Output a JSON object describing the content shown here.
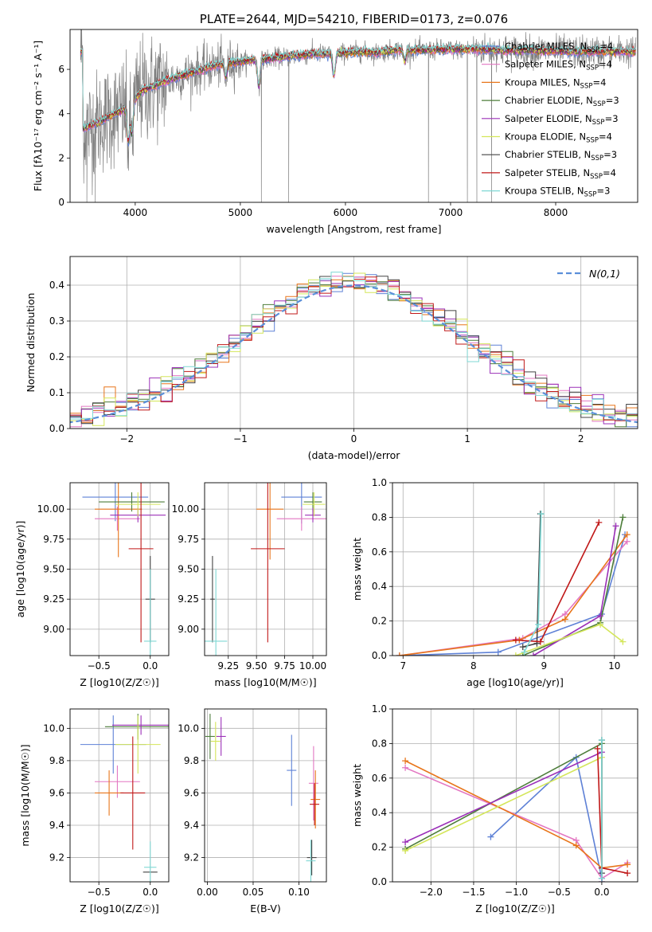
{
  "chart_data": [
    {
      "id": "spectrum",
      "type": "line",
      "title": "PLATE=2644, MJD=54210, FIBERID=0173, z=0.076",
      "xlabel": "wavelength [Angstrom, rest frame]",
      "ylabel": "Flux [fλ10⁻¹⁷ erg cm⁻² s⁻¹ A⁻¹]",
      "xlim": [
        3380,
        8780
      ],
      "ylim": [
        0,
        7.8
      ],
      "xticks": [
        4000,
        5000,
        6000,
        7000,
        8000
      ],
      "yticks": [
        0,
        2,
        4,
        6
      ],
      "continuum": {
        "x": [
          3500,
          3650,
          3800,
          3950,
          4050,
          4250,
          4500,
          4700,
          4900,
          5100,
          5300,
          5500,
          5700,
          5900,
          6100,
          6300,
          6500,
          6700,
          6900,
          7100,
          7300,
          7500,
          7700,
          7900,
          8100,
          8300,
          8500,
          8750
        ],
        "y": [
          3.3,
          3.6,
          4.0,
          4.3,
          5.0,
          5.4,
          5.8,
          6.1,
          6.3,
          6.4,
          6.5,
          6.6,
          6.7,
          6.7,
          6.8,
          6.75,
          6.9,
          6.85,
          6.9,
          6.9,
          6.9,
          6.85,
          6.85,
          6.85,
          6.8,
          6.8,
          6.8,
          6.8
        ]
      },
      "series": [
        {
          "name": "Chabrier MILES, N_SSP=4",
          "color": "#5e81d6"
        },
        {
          "name": "Salpeter MILES, N_SSP=4",
          "color": "#e377c2"
        },
        {
          "name": "Kroupa MILES, N_SSP=4",
          "color": "#e8751a"
        },
        {
          "name": "Chabrier ELODIE, N_SSP=3",
          "color": "#4d7d3a"
        },
        {
          "name": "Salpeter ELODIE, N_SSP=3",
          "color": "#9b30b8"
        },
        {
          "name": "Kroupa ELODIE, N_SSP=4",
          "color": "#d4e65a"
        },
        {
          "name": "Chabrier STELIB, N_SSP=3",
          "color": "#444444"
        },
        {
          "name": "Salpeter STELIB, N_SSP=4",
          "color": "#c01818"
        },
        {
          "name": "Kroupa STELIB, N_SSP=3",
          "color": "#7fd8d4"
        }
      ],
      "data_color": "#808080"
    },
    {
      "id": "residuals",
      "type": "line",
      "xlabel": "(data-model)/error",
      "ylabel": "Normed distribution",
      "xlim": [
        -2.5,
        2.5
      ],
      "ylim": [
        0,
        0.48
      ],
      "xticks": [
        -2,
        -1,
        0,
        1,
        2
      ],
      "yticks": [
        0.0,
        0.1,
        0.2,
        0.3,
        0.4
      ],
      "legend": "N(0,1)",
      "legend_color": "#5b8fd9"
    },
    {
      "id": "age-vs-z",
      "type": "scatter",
      "xlabel": "Z [log10(Z/Z☉)]",
      "ylabel": "age  [log10(age/yr)]",
      "xlim": [
        -0.78,
        0.18
      ],
      "ylim": [
        8.78,
        10.22
      ],
      "xticks": [
        -0.5,
        0.0
      ],
      "yticks": [
        9.0,
        9.25,
        9.5,
        9.75,
        10.0
      ],
      "points": [
        {
          "color": "#5e81d6",
          "x": -0.34,
          "y": 10.1,
          "xerr": 0.32,
          "yerr": 0.2
        },
        {
          "color": "#e377c2",
          "x": -0.32,
          "y": 9.92,
          "xerr": 0.22,
          "yerr": 0.1
        },
        {
          "color": "#e8751a",
          "x": -0.31,
          "y": 10.0,
          "xerr": 0.23,
          "yerr": 0.4
        },
        {
          "color": "#4d7d3a",
          "x": -0.18,
          "y": 10.06,
          "xerr": 0.32,
          "yerr": 0.08
        },
        {
          "color": "#9b30b8",
          "x": -0.12,
          "y": 9.95,
          "xerr": 0.27,
          "yerr": 0.06
        },
        {
          "color": "#d4e65a",
          "x": -0.12,
          "y": 10.04,
          "xerr": 0.22,
          "yerr": 0.1
        },
        {
          "color": "#c01818",
          "x": -0.09,
          "y": 9.67,
          "xerr": 0.12,
          "yerr": 0.78
        },
        {
          "color": "#444444",
          "x": 0.0,
          "y": 9.25,
          "xerr": 0.0,
          "yerr": 0.36
        },
        {
          "color": "#7fd8d4",
          "x": 0.0,
          "y": 8.9,
          "xerr": 0.06,
          "yerr": 0.6
        }
      ]
    },
    {
      "id": "age-vs-mass",
      "type": "scatter",
      "xlabel": "mass [log10(M/M☉)]",
      "xlim": [
        9.04,
        10.12
      ],
      "ylim": [
        8.78,
        10.22
      ],
      "xticks": [
        9.25,
        9.5,
        9.75,
        10.0
      ],
      "yticks": [
        9.0,
        9.25,
        9.5,
        9.75,
        10.0
      ],
      "points": [
        {
          "color": "#5e81d6",
          "x": 9.9,
          "y": 10.1,
          "xerr": 0.18,
          "yerr": 0.22
        },
        {
          "color": "#e377c2",
          "x": 9.9,
          "y": 9.92,
          "xerr": 0.22,
          "yerr": 0.1
        },
        {
          "color": "#e8751a",
          "x": 9.62,
          "y": 10.0,
          "xerr": 0.12,
          "yerr": 0.42
        },
        {
          "color": "#4d7d3a",
          "x": 10.0,
          "y": 10.06,
          "xerr": 0.08,
          "yerr": 0.08
        },
        {
          "color": "#9b30b8",
          "x": 10.0,
          "y": 9.95,
          "xerr": 0.07,
          "yerr": 0.06
        },
        {
          "color": "#d4e65a",
          "x": 10.01,
          "y": 10.04,
          "xerr": 0.1,
          "yerr": 0.1
        },
        {
          "color": "#c01818",
          "x": 9.6,
          "y": 9.67,
          "xerr": 0.15,
          "yerr": 0.78
        },
        {
          "color": "#444444",
          "x": 9.11,
          "y": 9.25,
          "xerr": 0.02,
          "yerr": 0.36
        },
        {
          "color": "#7fd8d4",
          "x": 9.14,
          "y": 8.9,
          "xerr": 0.1,
          "yerr": 0.6
        }
      ]
    },
    {
      "id": "weight-vs-age",
      "type": "line",
      "xlabel": "age  [log10(age/yr)]",
      "ylabel": "mass weight",
      "xlim": [
        6.85,
        10.33
      ],
      "ylim": [
        0,
        1.0
      ],
      "xticks": [
        7,
        8,
        9,
        10
      ],
      "yticks": [
        0.0,
        0.2,
        0.4,
        0.6,
        0.8,
        1.0
      ],
      "series": [
        {
          "color": "#5e81d6",
          "x": [
            6.95,
            8.35,
            9.82,
            10.15
          ],
          "y": [
            0.0,
            0.02,
            0.24,
            0.7
          ]
        },
        {
          "color": "#e377c2",
          "x": [
            6.95,
            8.7,
            9.3,
            10.18
          ],
          "y": [
            0.0,
            0.1,
            0.24,
            0.66
          ]
        },
        {
          "color": "#e8751a",
          "x": [
            6.95,
            8.65,
            9.3,
            10.18
          ],
          "y": [
            0.0,
            0.09,
            0.21,
            0.7
          ]
        },
        {
          "color": "#4d7d3a",
          "x": [
            8.7,
            9.8,
            10.12
          ],
          "y": [
            0.0,
            0.19,
            0.8
          ]
        },
        {
          "color": "#9b30b8",
          "x": [
            8.85,
            9.8,
            10.02
          ],
          "y": [
            0.0,
            0.23,
            0.75
          ]
        },
        {
          "color": "#d4e65a",
          "x": [
            8.6,
            9.8,
            10.12
          ],
          "y": [
            0.0,
            0.18,
            0.08
          ]
        },
        {
          "color": "#444444",
          "x": [
            8.7,
            8.9,
            8.95
          ],
          "y": [
            0.05,
            0.07,
            0.82
          ]
        },
        {
          "color": "#c01818",
          "x": [
            8.6,
            8.95,
            9.78
          ],
          "y": [
            0.09,
            0.08,
            0.77
          ]
        },
        {
          "color": "#7fd8d4",
          "x": [
            8.72,
            8.92,
            8.96
          ],
          "y": [
            0.02,
            0.18,
            0.82
          ]
        }
      ]
    },
    {
      "id": "mass-vs-z",
      "type": "scatter",
      "xlabel": "Z [log10(Z/Z☉)]",
      "ylabel": "mass [log10(M/M☉)]",
      "xlim": [
        -0.78,
        0.18
      ],
      "ylim": [
        9.05,
        10.12
      ],
      "xticks": [
        -0.5,
        0.0
      ],
      "yticks": [
        9.2,
        9.4,
        9.6,
        9.8,
        10.0
      ],
      "points": [
        {
          "color": "#5e81d6",
          "x": -0.36,
          "y": 9.9,
          "xerr": 0.32,
          "yerr": 0.18
        },
        {
          "color": "#e377c2",
          "x": -0.32,
          "y": 9.67,
          "xerr": 0.22,
          "yerr": 0.1
        },
        {
          "color": "#e8751a",
          "x": -0.4,
          "y": 9.6,
          "xerr": 0.14,
          "yerr": 0.14
        },
        {
          "color": "#4d7d3a",
          "x": -0.12,
          "y": 10.01,
          "xerr": 0.32,
          "yerr": 0.08
        },
        {
          "color": "#9b30b8",
          "x": -0.09,
          "y": 10.02,
          "xerr": 0.28,
          "yerr": 0.06
        },
        {
          "color": "#d4e65a",
          "x": -0.12,
          "y": 9.9,
          "xerr": 0.22,
          "yerr": 0.18
        },
        {
          "color": "#c01818",
          "x": -0.17,
          "y": 9.6,
          "xerr": 0.12,
          "yerr": 0.35
        },
        {
          "color": "#444444",
          "x": 0.0,
          "y": 9.11,
          "xerr": 0.07,
          "yerr": 0.0
        },
        {
          "color": "#7fd8d4",
          "x": 0.0,
          "y": 9.14,
          "xerr": 0.06,
          "yerr": 0.16
        }
      ]
    },
    {
      "id": "mass-vs-ebv",
      "type": "scatter",
      "xlabel": "E(B-V)",
      "xlim": [
        -0.003,
        0.13
      ],
      "ylim": [
        9.05,
        10.12
      ],
      "xticks": [
        0.0,
        0.05,
        0.1
      ],
      "yticks": [
        9.2,
        9.4,
        9.6,
        9.8,
        10.0
      ],
      "points": [
        {
          "color": "#4d7d3a",
          "x": 0.003,
          "y": 9.95,
          "yerr": 0.14
        },
        {
          "color": "#d4e65a",
          "x": 0.009,
          "y": 9.92,
          "yerr": 0.12
        },
        {
          "color": "#9b30b8",
          "x": 0.015,
          "y": 9.95,
          "yerr": 0.12
        },
        {
          "color": "#5e81d6",
          "x": 0.092,
          "y": 9.74,
          "yerr": 0.22
        },
        {
          "color": "#e377c2",
          "x": 0.116,
          "y": 9.66,
          "yerr": 0.23
        },
        {
          "color": "#e8751a",
          "x": 0.118,
          "y": 9.56,
          "yerr": 0.18
        },
        {
          "color": "#c01818",
          "x": 0.117,
          "y": 9.53,
          "yerr": 0.13
        },
        {
          "color": "#444444",
          "x": 0.114,
          "y": 9.2,
          "yerr": 0.11
        },
        {
          "color": "#7fd8d4",
          "x": 0.113,
          "y": 9.18,
          "yerr": 0.13
        }
      ]
    },
    {
      "id": "weight-vs-z",
      "type": "line",
      "xlabel": "Z [log10(Z/Z☉)]",
      "ylabel": "mass weight",
      "xlim": [
        -2.45,
        0.42
      ],
      "ylim": [
        0,
        1.0
      ],
      "xticks": [
        -2.0,
        -1.5,
        -1.0,
        -0.5,
        0.0
      ],
      "yticks": [
        0.0,
        0.2,
        0.4,
        0.6,
        0.8,
        1.0
      ],
      "series": [
        {
          "color": "#5e81d6",
          "x": [
            -1.3,
            -0.3,
            0.0
          ],
          "y": [
            0.26,
            0.72,
            0.02
          ]
        },
        {
          "color": "#e377c2",
          "x": [
            -2.3,
            -0.3,
            0.0,
            0.3
          ],
          "y": [
            0.66,
            0.24,
            0.02,
            0.11
          ]
        },
        {
          "color": "#e8751a",
          "x": [
            -2.3,
            -0.3,
            0.0,
            0.3
          ],
          "y": [
            0.7,
            0.21,
            0.08,
            0.1
          ]
        },
        {
          "color": "#4d7d3a",
          "x": [
            -2.3,
            0.0,
            0.0
          ],
          "y": [
            0.19,
            0.8,
            0.0
          ]
        },
        {
          "color": "#9b30b8",
          "x": [
            -2.3,
            0.0,
            0.0
          ],
          "y": [
            0.23,
            0.75,
            0.0
          ]
        },
        {
          "color": "#d4e65a",
          "x": [
            -2.3,
            0.0,
            0.0
          ],
          "y": [
            0.18,
            0.72,
            0.08
          ]
        },
        {
          "color": "#444444",
          "x": [
            0.0,
            0.0
          ],
          "y": [
            0.05,
            0.82
          ]
        },
        {
          "color": "#c01818",
          "x": [
            -0.05,
            0.0,
            0.3
          ],
          "y": [
            0.77,
            0.08,
            0.05
          ]
        },
        {
          "color": "#7fd8d4",
          "x": [
            0.0,
            0.0
          ],
          "y": [
            0.02,
            0.82
          ]
        }
      ]
    }
  ]
}
